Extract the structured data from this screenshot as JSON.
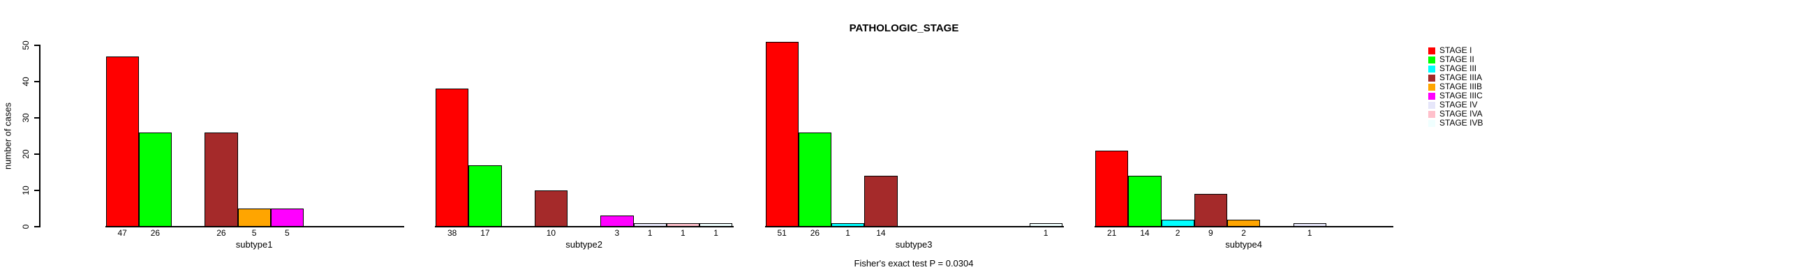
{
  "title": "PATHOLOGIC_STAGE",
  "footnote": "Fisher's exact test P = 0.0304",
  "chart_data": {
    "type": "bar",
    "title": "PATHOLOGIC_STAGE",
    "xlabel": "",
    "ylabel": "number of cases",
    "ylim": [
      0,
      50
    ],
    "yticks": [
      0,
      10,
      20,
      30,
      40,
      50
    ],
    "grid": false,
    "legend_position": "right",
    "categories": [
      "subtype1",
      "subtype2",
      "subtype3",
      "subtype4"
    ],
    "stages": [
      "STAGE I",
      "STAGE II",
      "STAGE III",
      "STAGE IIIA",
      "STAGE IIIB",
      "STAGE IIIC",
      "STAGE IV",
      "STAGE IVA",
      "STAGE IVB"
    ],
    "colors": [
      "#FF0000",
      "#00FF00",
      "#00FFFF",
      "#A52A2A",
      "#FFA500",
      "#FF00FF",
      "#E6E6FA",
      "#FFC0CB",
      "#F0FFFF"
    ],
    "series": [
      {
        "name": "STAGE I",
        "values": [
          47,
          38,
          51,
          21
        ]
      },
      {
        "name": "STAGE II",
        "values": [
          26,
          17,
          26,
          14
        ]
      },
      {
        "name": "STAGE III",
        "values": [
          0,
          0,
          1,
          2
        ]
      },
      {
        "name": "STAGE IIIA",
        "values": [
          26,
          10,
          14,
          9
        ]
      },
      {
        "name": "STAGE IIIB",
        "values": [
          5,
          0,
          0,
          2
        ]
      },
      {
        "name": "STAGE IIIC",
        "values": [
          5,
          3,
          0,
          0
        ]
      },
      {
        "name": "STAGE IV",
        "values": [
          0,
          1,
          0,
          1
        ]
      },
      {
        "name": "STAGE IVA",
        "values": [
          0,
          1,
          0,
          0
        ]
      },
      {
        "name": "STAGE IVB",
        "values": [
          0,
          1,
          1,
          0
        ]
      }
    ],
    "footnote": "Fisher's exact test P = 0.0304"
  }
}
